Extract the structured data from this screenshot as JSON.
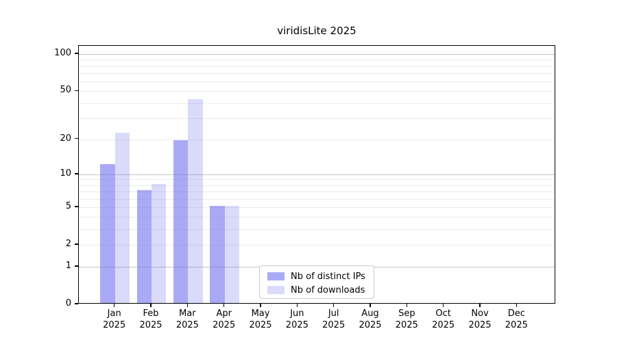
{
  "title": "viridisLite 2025",
  "chart_data": {
    "type": "bar",
    "title": "viridisLite 2025",
    "categories": [
      "Jan",
      "Feb",
      "Mar",
      "Apr",
      "May",
      "Jun",
      "Jul",
      "Aug",
      "Sep",
      "Oct",
      "Nov",
      "Dec"
    ],
    "category_year": "2025",
    "series": [
      {
        "name": "Nb of distinct IPs",
        "values": [
          12,
          7,
          19,
          5,
          0,
          0,
          0,
          0,
          0,
          0,
          0,
          0
        ],
        "color": "rgba(102,102,238,0.56)"
      },
      {
        "name": "Nb of downloads",
        "values": [
          22,
          8,
          42,
          5,
          0,
          0,
          0,
          0,
          0,
          0,
          0,
          0
        ],
        "color": "rgba(102,102,238,0.24)"
      }
    ],
    "xlabel": "",
    "ylabel": "",
    "yscale": "log1p",
    "ylim": [
      0,
      117
    ],
    "yticks": [
      0,
      1,
      2,
      5,
      10,
      20,
      50,
      100
    ],
    "gridlines": {
      "major": [
        1,
        10,
        100
      ],
      "minor": [
        2,
        3,
        4,
        5,
        6,
        7,
        8,
        9,
        20,
        30,
        40,
        50,
        60,
        70,
        80,
        90
      ]
    },
    "legend_position": "lower center",
    "grid_on": true
  },
  "colors": {
    "ips_bar_solid": "#a9a9f5",
    "downloads_bar_solid": "#d8d8f9",
    "major_grid": "#c3c3c3",
    "minor_grid": "#ececec",
    "axis": "#000000",
    "legend_border": "#cccccc",
    "background": "#ffffff"
  }
}
